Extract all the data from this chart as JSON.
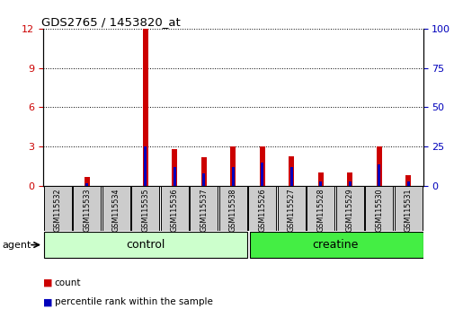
{
  "title": "GDS2765 / 1453820_at",
  "categories": [
    "GSM115532",
    "GSM115533",
    "GSM115534",
    "GSM115535",
    "GSM115536",
    "GSM115537",
    "GSM115538",
    "GSM115526",
    "GSM115527",
    "GSM115528",
    "GSM115529",
    "GSM115530",
    "GSM115531"
  ],
  "groups": [
    "control",
    "control",
    "control",
    "control",
    "control",
    "control",
    "control",
    "creatine",
    "creatine",
    "creatine",
    "creatine",
    "creatine",
    "creatine"
  ],
  "count_values": [
    0.0,
    0.7,
    0.0,
    12.0,
    2.8,
    2.2,
    3.0,
    3.0,
    2.3,
    1.0,
    1.0,
    3.0,
    0.8
  ],
  "percentile_values": [
    0.0,
    2.0,
    0.0,
    25.0,
    12.0,
    8.0,
    12.0,
    15.0,
    12.0,
    3.0,
    3.0,
    14.0,
    3.0
  ],
  "left_ylim": [
    0,
    12
  ],
  "right_ylim": [
    0,
    100
  ],
  "left_yticks": [
    0,
    3,
    6,
    9,
    12
  ],
  "right_yticks": [
    0,
    25,
    50,
    75,
    100
  ],
  "count_color": "#cc0000",
  "percentile_color": "#0000bb",
  "control_color": "#ccffcc",
  "creatine_color": "#44ee44",
  "sample_bg_color": "#cccccc",
  "agent_label": "agent",
  "control_label": "control",
  "creatine_label": "creatine",
  "n_control": 7,
  "n_creatine": 6
}
